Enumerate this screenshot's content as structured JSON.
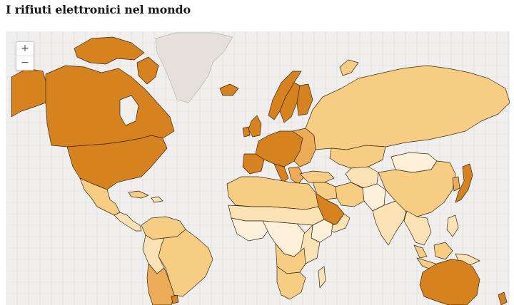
{
  "header": {
    "title": "I rifiuti elettronici nel mondo"
  },
  "zoom": {
    "in_label": "+",
    "out_label": "−"
  },
  "colors": {
    "ocean": "#f1eeee",
    "grid": "#e2dede",
    "border": "#3a2a1a",
    "no_data": "#e6e0da",
    "high": "#d5821f",
    "medium_high": "#ecab57",
    "medium": "#f7cc83",
    "low": "#fbe2b4",
    "very_low": "#fdf0d8"
  }
}
